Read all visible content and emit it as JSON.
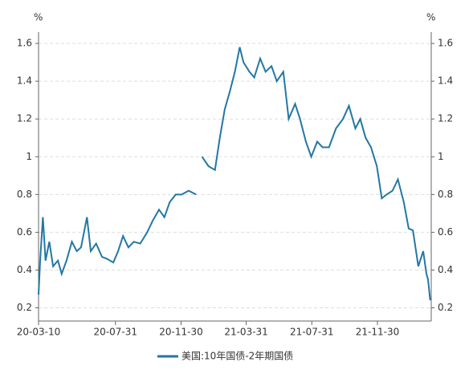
{
  "chart_data": {
    "type": "line",
    "y_axis_label": "%",
    "y2_axis_label": "%",
    "x": [
      "20-03-10",
      "20-03-13",
      "20-03-18",
      "20-03-23",
      "20-03-30",
      "20-04-06",
      "20-04-15",
      "20-04-22",
      "20-05-01",
      "20-05-11",
      "20-05-20",
      "20-05-28",
      "20-06-08",
      "20-06-15",
      "20-06-25",
      "20-07-06",
      "20-07-15",
      "20-07-27",
      "20-08-05",
      "20-08-14",
      "20-08-24",
      "20-09-03",
      "20-09-15",
      "20-09-28",
      "20-10-08",
      "20-10-20",
      "20-10-30",
      "20-11-09",
      "20-11-20",
      "20-12-01",
      "20-12-14",
      "20-12-28",
      "20-01-08",
      "21-01-08",
      "21-01-20",
      "21-02-01",
      "21-02-10",
      "21-02-19",
      "21-03-01",
      "21-03-10",
      "21-03-19",
      "21-03-26",
      "21-04-06",
      "21-04-15",
      "21-04-26",
      "21-05-06",
      "21-05-17",
      "21-05-27",
      "21-06-08",
      "21-06-18",
      "21-06-30",
      "21-07-09",
      "21-07-20",
      "21-07-30",
      "21-08-10",
      "21-08-20",
      "21-09-01",
      "21-09-14",
      "21-09-27",
      "21-10-08",
      "21-10-20",
      "21-10-29",
      "21-11-08",
      "21-11-18",
      "21-11-29",
      "21-12-08",
      "21-12-17",
      "21-12-28",
      "22-01-07",
      "22-01-18",
      "22-01-27",
      "22-02-04",
      "22-02-14",
      "22-02-23",
      "22-03-01",
      "22-03-04",
      "22-03-08"
    ],
    "series": [
      {
        "name": "美国:10年国债-2年期国债",
        "color": "#2377a4",
        "values": [
          0.27,
          0.45,
          0.68,
          0.45,
          0.55,
          0.42,
          0.45,
          0.38,
          0.45,
          0.55,
          0.5,
          0.52,
          0.68,
          0.5,
          0.54,
          0.47,
          0.46,
          0.44,
          0.5,
          0.58,
          0.52,
          0.55,
          0.54,
          0.6,
          0.66,
          0.72,
          0.68,
          0.76,
          0.8,
          0.8,
          0.82,
          0.8,
          null,
          1.0,
          0.95,
          0.93,
          1.1,
          1.25,
          1.35,
          1.45,
          1.58,
          1.5,
          1.45,
          1.42,
          1.52,
          1.45,
          1.48,
          1.4,
          1.45,
          1.2,
          1.28,
          1.2,
          1.08,
          1.0,
          1.08,
          1.05,
          1.05,
          1.15,
          1.2,
          1.27,
          1.15,
          1.2,
          1.1,
          1.05,
          0.95,
          0.78,
          0.8,
          0.82,
          0.88,
          0.76,
          0.62,
          0.61,
          0.42,
          0.5,
          0.38,
          0.35,
          0.24
        ]
      }
    ],
    "xlim": [
      "20-03-10",
      "22-03-10"
    ],
    "xticks": [
      "20-03-10",
      "20-07-31",
      "20-11-30",
      "21-03-31",
      "21-07-31",
      "21-11-30"
    ],
    "ylim": [
      0.13,
      1.66
    ],
    "yticks": [
      0.2,
      0.4,
      0.6,
      0.8,
      1,
      1.2,
      1.4,
      1.6
    ],
    "y2lim": [
      0.13,
      1.66
    ],
    "y2ticks": [
      0.2,
      0.4,
      0.6,
      0.8,
      1,
      1.2,
      1.4,
      1.6
    ],
    "grid": true
  }
}
